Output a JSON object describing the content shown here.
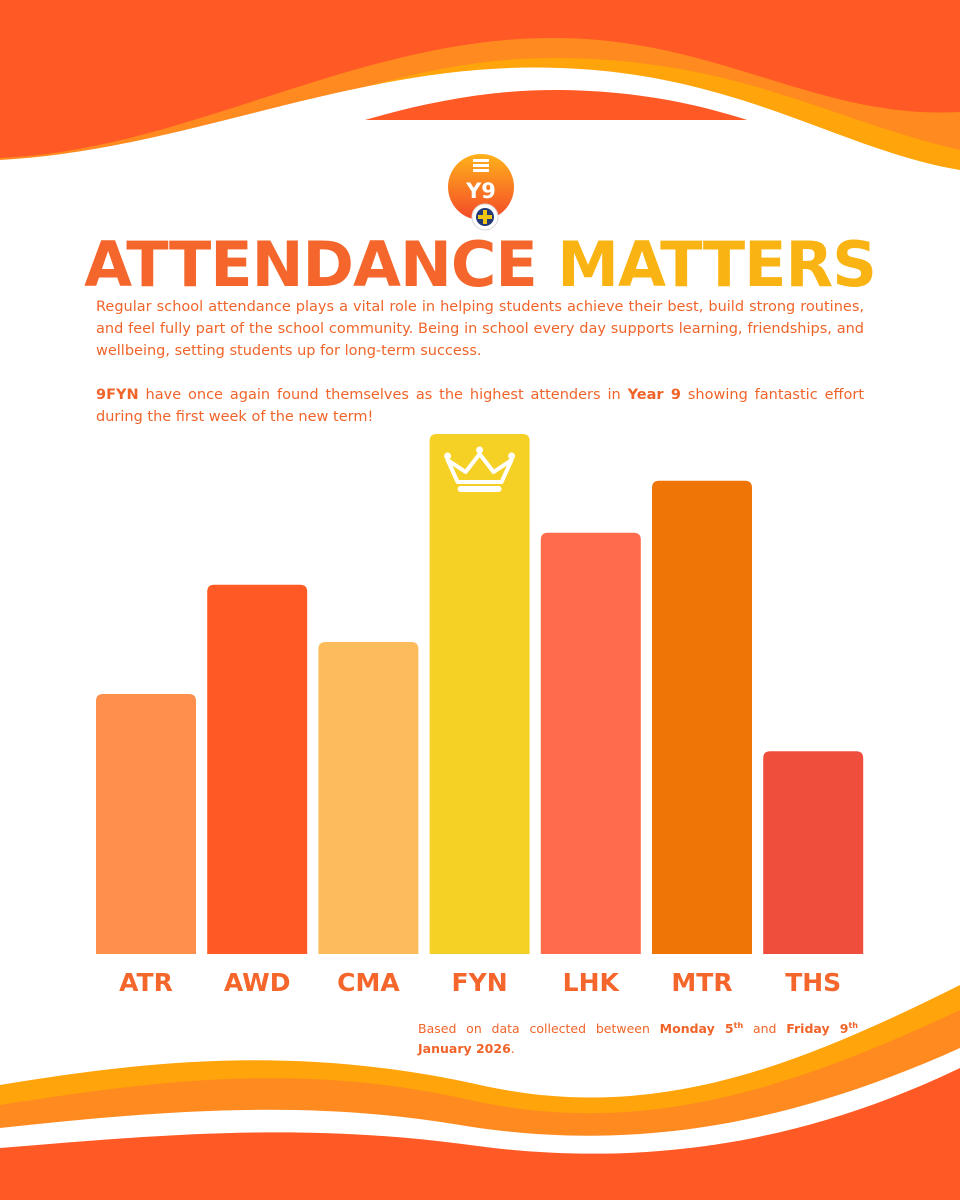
{
  "header": {
    "title_part1": "ATTENDANCE",
    "title_part2": "MATTERS",
    "logo_text": "Y9"
  },
  "intro": "Regular school attendance plays a vital role in helping students achieve their best, build strong routines, and feel fully part of the school community. Being in school every day supports learning, friendships, and wellbeing, setting students up for long-term success.",
  "highlight": {
    "form": "9FYN",
    "text_a": " have once again found themselves as the highest attenders in ",
    "year": "Year 9",
    "text_b": " showing fantastic effort during the first week of the new term!"
  },
  "footnote": {
    "prefix": "Based on data collected between ",
    "start_day": "Monday 5",
    "start_sup": "th",
    "middle": " and ",
    "end_day": "Friday 9",
    "end_sup": "th",
    "end_year": "January 2026",
    "suffix": "."
  },
  "colors": {
    "accent_orange": "#f4662b",
    "accent_yellow": "#f9b414",
    "text_orange": "#f0642a"
  },
  "chart_data": {
    "type": "bar",
    "title": "",
    "xlabel": "",
    "ylabel": "",
    "grid": false,
    "ylim": [
      0,
      100
    ],
    "categories": [
      "ATR",
      "AWD",
      "CMA",
      "FYN",
      "LHK",
      "MTR",
      "THS"
    ],
    "values": [
      50,
      71,
      60,
      100,
      81,
      91,
      39
    ],
    "colors": [
      "#ff8f4c",
      "#ff5a25",
      "#fdbc5c",
      "#f6d125",
      "#ff6b4b",
      "#f07507",
      "#ef4e3c"
    ],
    "highlight_category": "FYN",
    "highlight_icon": "crown-icon"
  }
}
